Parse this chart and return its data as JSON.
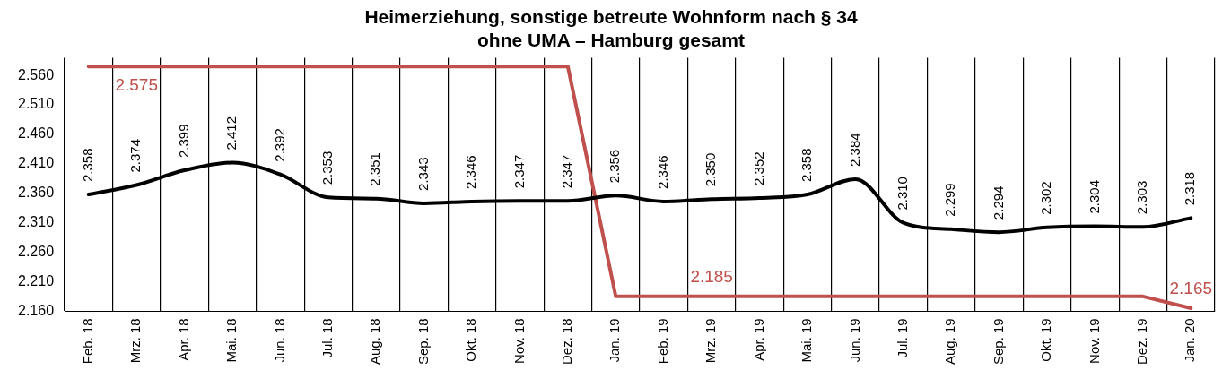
{
  "chart_data": {
    "type": "line",
    "title": "Heimerziehung, sonstige betreute Wohnform nach § 34\nohne UMA – Hamburg gesamt",
    "categories": [
      "Feb. 18",
      "Mrz. 18",
      "Apr. 18",
      "Mai. 18",
      "Jun. 18",
      "Jul. 18",
      "Aug. 18",
      "Sep. 18",
      "Okt. 18",
      "Nov. 18",
      "Dez. 18",
      "Jan. 19",
      "Feb. 19",
      "Mrz. 19",
      "Apr. 19",
      "Mai. 19",
      "Jun. 19",
      "Jul. 19",
      "Aug. 19",
      "Sep. 19",
      "Okt. 19",
      "Nov. 19",
      "Dez. 19",
      "Jan. 20"
    ],
    "series": [
      {
        "color": "#000000",
        "values": [
          2358,
          2374,
          2399,
          2412,
          2392,
          2353,
          2351,
          2343,
          2346,
          2347,
          2347,
          2356,
          2346,
          2350,
          2352,
          2358,
          2384,
          2310,
          2299,
          2294,
          2302,
          2304,
          2303,
          2318
        ],
        "value_labels": [
          "2.358",
          "2.374",
          "2.399",
          "2.412",
          "2.392",
          "2.353",
          "2.351",
          "2.343",
          "2.346",
          "2.347",
          "2.347",
          "2.356",
          "2.346",
          "2.350",
          "2.352",
          "2.358",
          "2.384",
          "2.310",
          "2.299",
          "2.294",
          "2.302",
          "2.304",
          "2.303",
          "2.318"
        ]
      },
      {
        "color": "#c0504d",
        "type": "step",
        "values": [
          2575,
          2575,
          2575,
          2575,
          2575,
          2575,
          2575,
          2575,
          2575,
          2575,
          2575,
          2185,
          2185,
          2185,
          2185,
          2185,
          2185,
          2185,
          2185,
          2185,
          2185,
          2185,
          2185,
          2165
        ],
        "value_labels": [
          null,
          "2.575",
          null,
          null,
          null,
          null,
          null,
          null,
          null,
          null,
          null,
          null,
          null,
          "2.185",
          null,
          null,
          null,
          null,
          null,
          null,
          null,
          null,
          null,
          "2.165"
        ]
      }
    ],
    "ylim": [
      2160,
      2590
    ],
    "yticks": [
      {
        "value": 2160,
        "label": "2.160"
      },
      {
        "value": 2210,
        "label": "2.210"
      },
      {
        "value": 2260,
        "label": "2.260"
      },
      {
        "value": 2310,
        "label": "2.310"
      },
      {
        "value": 2360,
        "label": "2.360"
      },
      {
        "value": 2410,
        "label": "2.410"
      },
      {
        "value": 2460,
        "label": "2.460"
      },
      {
        "value": 2510,
        "label": "2.510"
      },
      {
        "value": 2560,
        "label": "2.560"
      }
    ],
    "grid": "x",
    "legend": false,
    "marker": "none",
    "line_style": "solid"
  }
}
